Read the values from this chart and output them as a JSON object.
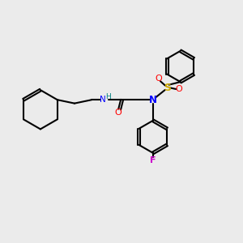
{
  "background_color": "#ebebeb",
  "bond_color": "#000000",
  "atom_colors": {
    "N": "#0000ff",
    "O": "#ff0000",
    "S": "#ccaa00",
    "F": "#cc00cc",
    "H": "#008080",
    "C": "#000000"
  },
  "figsize": [
    3.0,
    3.0
  ],
  "dpi": 100
}
